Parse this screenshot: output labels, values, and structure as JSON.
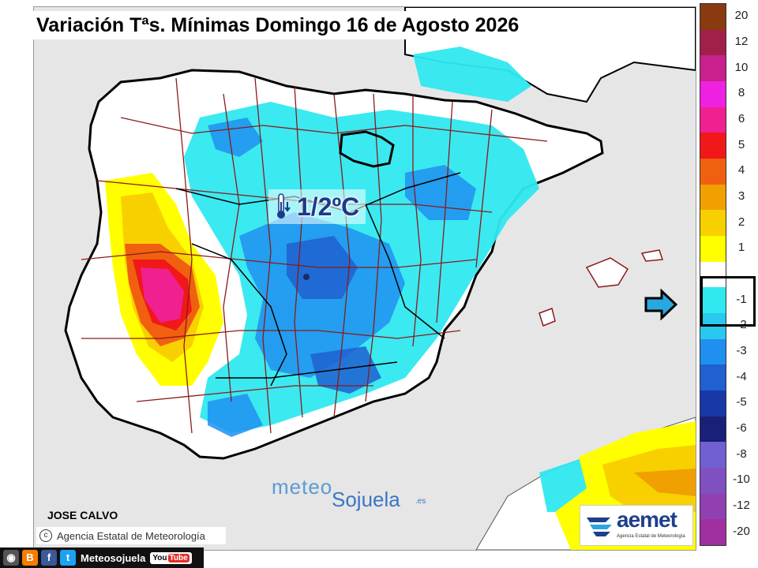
{
  "map": {
    "title": "Variación Tªs. Mínimas Domingo 16 de Agosto 2026",
    "value_label": "1/2ºC",
    "thermometer_icon": "thermometer-down-icon",
    "colors": {
      "sea": "#e6e6e6",
      "land_base": "#ffffff",
      "coast": "#000000",
      "borders": "#8b1a1a",
      "highlight_region": "#000000"
    }
  },
  "legend": {
    "items": [
      {
        "label": "20",
        "color": "#8a3a10"
      },
      {
        "label": "12",
        "color": "#a0204a"
      },
      {
        "label": "10",
        "color": "#c8208c"
      },
      {
        "label": "8",
        "color": "#f020e0"
      },
      {
        "label": "6",
        "color": "#f02090"
      },
      {
        "label": "5",
        "color": "#f01818"
      },
      {
        "label": "4",
        "color": "#f06010"
      },
      {
        "label": "3",
        "color": "#f0a000"
      },
      {
        "label": "2",
        "color": "#f8d000"
      },
      {
        "label": "1",
        "color": "#ffff00"
      },
      {
        "label": "",
        "color": "#ffffff"
      },
      {
        "label": "-1",
        "color": "#30e8f0"
      },
      {
        "label": "-2",
        "color": "#28c8f0"
      },
      {
        "label": "-3",
        "color": "#2090f0"
      },
      {
        "label": "-4",
        "color": "#2060d0"
      },
      {
        "label": "-5",
        "color": "#1838a8"
      },
      {
        "label": "-6",
        "color": "#182078"
      },
      {
        "label": "-8",
        "color": "#7060d0"
      },
      {
        "label": "-10",
        "color": "#8050c0"
      },
      {
        "label": "-12",
        "color": "#9040b0"
      },
      {
        "label": "-20",
        "color": "#a030a0"
      }
    ],
    "highlight_labels": [
      "-1",
      "-2"
    ],
    "arrow_icon": "arrow-right-icon",
    "arrow_color": "#29a8e0"
  },
  "footer": {
    "author": "JOSE CALVO",
    "aemet_copyright": "Agencia Estatal de Meteorología",
    "social_handle": "Meteosojuela",
    "youtube_label_a": "You",
    "youtube_label_b": "Tube",
    "icons": [
      "camera-icon",
      "blogger-icon",
      "facebook-icon",
      "twitter-icon",
      "youtube-icon"
    ]
  },
  "watermark": {
    "part1": "meteo",
    "part2": "Sojuela",
    "part3": ".es"
  },
  "aemet_logo": {
    "name": "aemet",
    "subtitle": "Agencia Estatal de Meteorología"
  }
}
